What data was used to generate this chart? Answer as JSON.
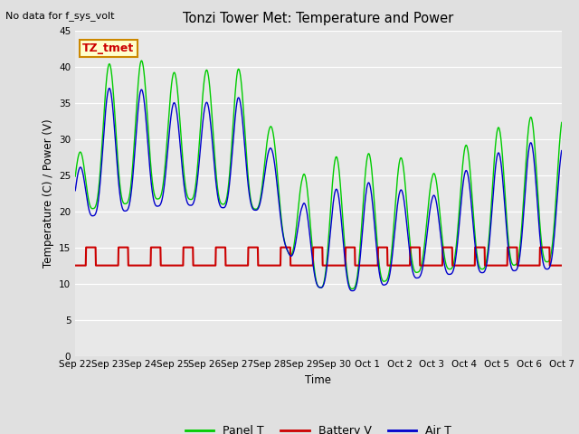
{
  "title": "Tonzi Tower Met: Temperature and Power",
  "top_left_text": "No data for f_sys_volt",
  "ylabel": "Temperature (C) / Power (V)",
  "xlabel": "Time",
  "ylim": [
    0,
    45
  ],
  "yticks": [
    0,
    5,
    10,
    15,
    20,
    25,
    30,
    35,
    40,
    45
  ],
  "background_color": "#e0e0e0",
  "plot_bg_color": "#e8e8e8",
  "legend_labels": [
    "Panel T",
    "Battery V",
    "Air T"
  ],
  "legend_colors": [
    "#00cc00",
    "#cc0000",
    "#0000cc"
  ],
  "annotation_text": "TZ_tmet",
  "annotation_bg": "#ffffcc",
  "annotation_border": "#cc8800",
  "annotation_text_color": "#cc0000",
  "line_colors": {
    "panel": "#00cc00",
    "battery": "#cc0000",
    "air": "#0000cc"
  },
  "x_labels": [
    "Sep 22",
    "Sep 23",
    "Sep 24",
    "Sep 25",
    "Sep 26",
    "Sep 27",
    "Sep 28",
    "Sep 29",
    "Sep 30",
    "Oct 1",
    "Oct 2",
    "Oct 3",
    "Oct 4",
    "Oct 5",
    "Oct 6",
    "Oct 7"
  ],
  "n_days": 15
}
